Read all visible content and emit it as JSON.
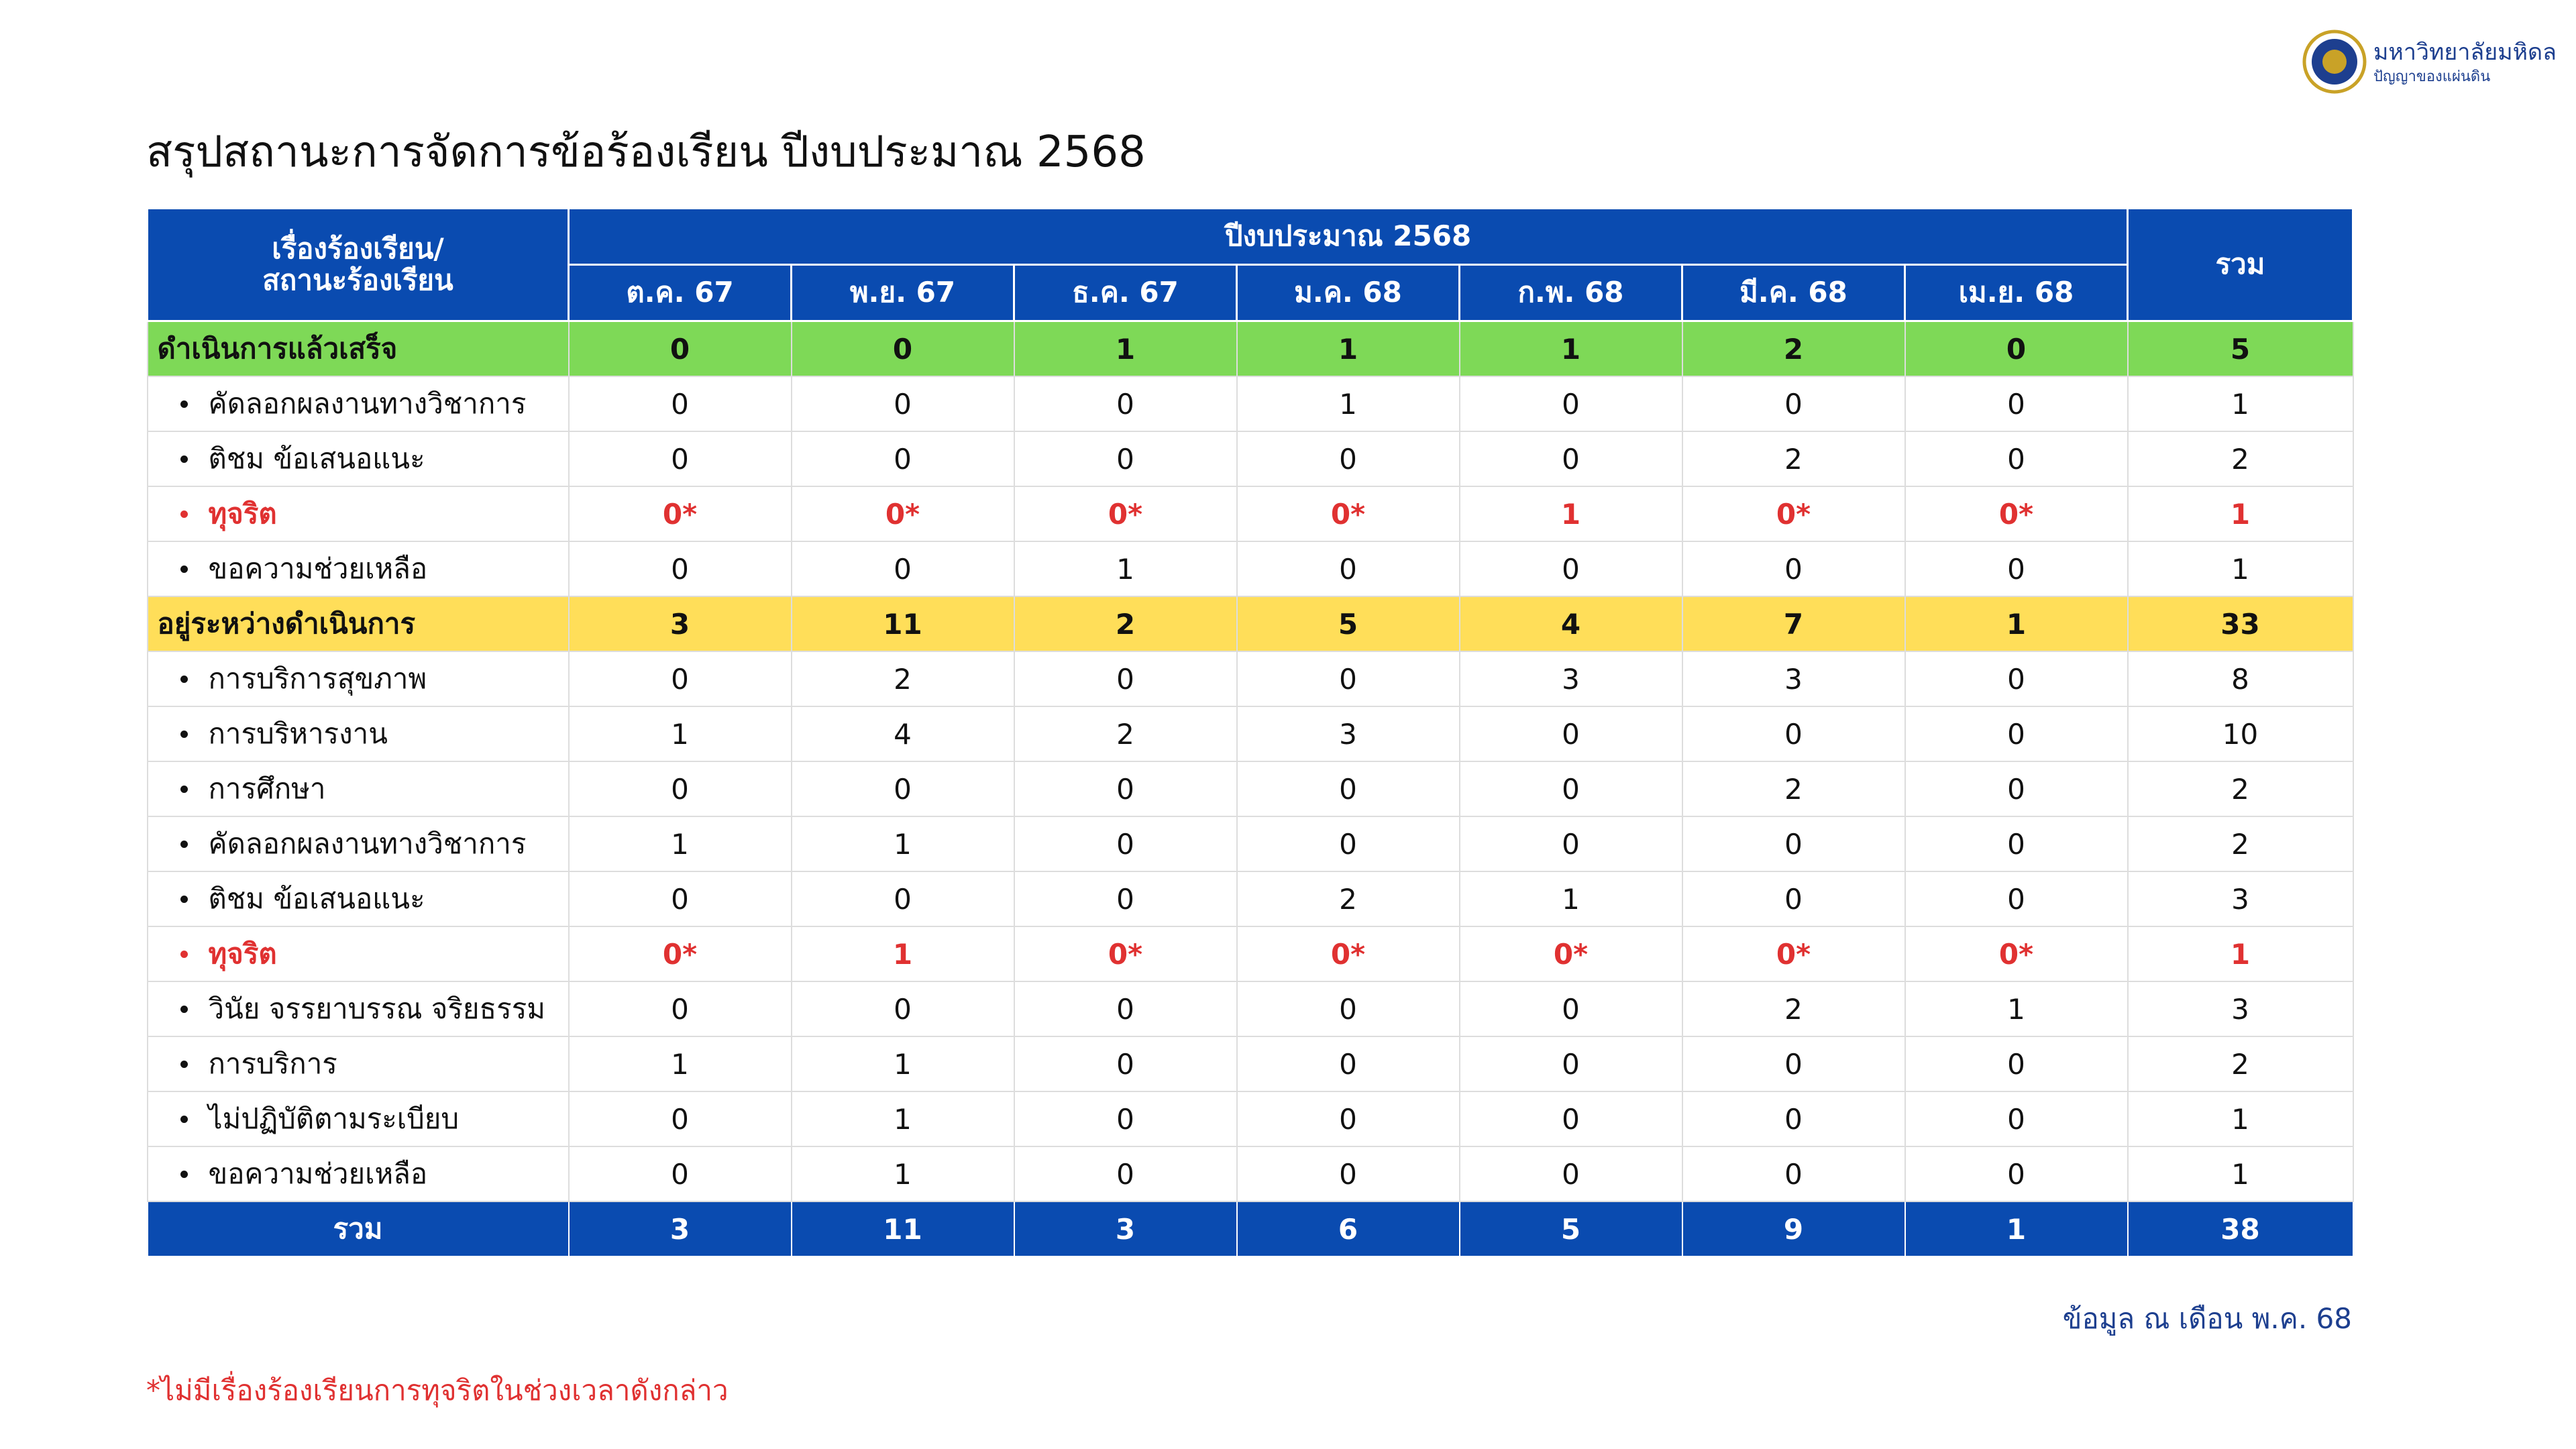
{
  "logo": {
    "name": "มหาวิทยาลัยมหิดล",
    "tagline": "ปัญญาของแผ่นดิน"
  },
  "title": "สรุปสถานะการจัดการข้อร้องเรียน ปีงบประมาณ 2568",
  "table": {
    "header": {
      "row_header": [
        "เรื่องร้องเรียน/",
        "สถานะร้องเรียน"
      ],
      "group": "ปีงบประมาณ 2568",
      "months": [
        "ต.ค. 67",
        "พ.ย. 67",
        "ธ.ค. 67",
        "ม.ค. 68",
        "ก.พ. 68",
        "มี.ค. 68",
        "เม.ย. 68"
      ],
      "total": "รวม",
      "color": "#0a4bb0"
    },
    "groups": [
      {
        "label": "ดำเนินการแล้วเสร็จ",
        "color": "#7ed957",
        "cells": [
          0,
          0,
          1,
          1,
          1,
          2,
          0,
          5
        ],
        "items": [
          {
            "label": "คัดลอกผลงานทางวิชาการ",
            "cells": [
              0,
              0,
              0,
              1,
              0,
              0,
              0,
              1
            ]
          },
          {
            "label": "ติชม ข้อเสนอแนะ",
            "cells": [
              0,
              0,
              0,
              0,
              0,
              2,
              0,
              2
            ]
          },
          {
            "label": "ทุจริต",
            "color": "#e03131",
            "cells": [
              "0*",
              "0*",
              "0*",
              "0*",
              1,
              "0*",
              "0*",
              1
            ]
          },
          {
            "label": "ขอความช่วยเหลือ",
            "cells": [
              0,
              0,
              1,
              0,
              0,
              0,
              0,
              1
            ]
          }
        ]
      },
      {
        "label": "อยู่ระหว่างดำเนินการ",
        "color": "#ffde59",
        "cells": [
          3,
          11,
          2,
          5,
          4,
          7,
          1,
          33
        ],
        "items": [
          {
            "label": "การบริการสุขภาพ",
            "cells": [
              0,
              2,
              0,
              0,
              3,
              3,
              0,
              8
            ]
          },
          {
            "label": "การบริหารงาน",
            "cells": [
              1,
              4,
              2,
              3,
              0,
              0,
              0,
              10
            ]
          },
          {
            "label": "การศึกษา",
            "cells": [
              0,
              0,
              0,
              0,
              0,
              2,
              0,
              2
            ]
          },
          {
            "label": "คัดลอกผลงานทางวิชาการ",
            "cells": [
              1,
              1,
              0,
              0,
              0,
              0,
              0,
              2
            ]
          },
          {
            "label": "ติชม ข้อเสนอแนะ",
            "cells": [
              0,
              0,
              0,
              2,
              1,
              0,
              0,
              3
            ]
          },
          {
            "label": "ทุจริต",
            "color": "#e03131",
            "cells": [
              "0*",
              1,
              "0*",
              "0*",
              "0*",
              "0*",
              "0*",
              1
            ]
          },
          {
            "label": "วินัย จรรยาบรรณ จริยธรรม",
            "cells": [
              0,
              0,
              0,
              0,
              0,
              2,
              1,
              3
            ]
          },
          {
            "label": "การบริการ",
            "cells": [
              1,
              1,
              0,
              0,
              0,
              0,
              0,
              2
            ]
          },
          {
            "label": "ไม่ปฏิบัติตามระเบียบ",
            "cells": [
              0,
              1,
              0,
              0,
              0,
              0,
              0,
              1
            ]
          },
          {
            "label": "ขอความช่วยเหลือ",
            "cells": [
              0,
              1,
              0,
              0,
              0,
              0,
              0,
              1
            ]
          }
        ]
      }
    ],
    "total": {
      "label": "รวม",
      "cells": [
        3,
        11,
        3,
        6,
        5,
        9,
        1,
        38
      ]
    }
  },
  "data_date": "ข้อมูล ณ เดือน พ.ค. 68",
  "footnote": "*ไม่มีเรื่องร้องเรียนการทุจริตในช่วงเวลาดังกล่าว"
}
